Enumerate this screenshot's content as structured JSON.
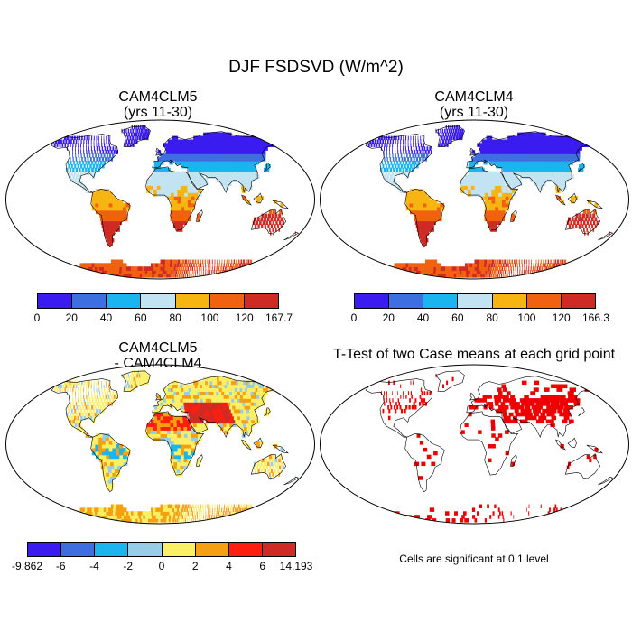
{
  "title": "DJF FSDSVD (W/m^2)",
  "panels": [
    {
      "title1": "CAM4CLM5",
      "title2": "(yrs 11-30)",
      "kind": "abs",
      "colorbar": {
        "labels": [
          "0",
          "20",
          "40",
          "60",
          "80",
          "100",
          "120",
          "167.7"
        ],
        "colors": [
          "#3b1cf0",
          "#3d6fe0",
          "#1ab4ef",
          "#c2e3f2",
          "#f6b511",
          "#f06110",
          "#cf2a24"
        ]
      }
    },
    {
      "title1": "CAM4CLM4",
      "title2": "(yrs 11-30)",
      "kind": "abs",
      "colorbar": {
        "labels": [
          "0",
          "20",
          "40",
          "60",
          "80",
          "100",
          "120",
          "166.3"
        ],
        "colors": [
          "#3b1cf0",
          "#3d6fe0",
          "#1ab4ef",
          "#c2e3f2",
          "#f6b511",
          "#f06110",
          "#cf2a24"
        ]
      }
    },
    {
      "title1": "CAM4CLM5",
      "title2": "- CAM4CLM4",
      "kind": "diff",
      "colorbar": {
        "labels": [
          "-9.862",
          "-6",
          "-4",
          "-2",
          "0",
          "2",
          "4",
          "6",
          "14.193"
        ],
        "colors": [
          "#3b1cf0",
          "#3d6fe0",
          "#1ab4ef",
          "#98cde8",
          "#fbef66",
          "#f4a010",
          "#fe1f10",
          "#cf2a24"
        ]
      }
    },
    {
      "title1": "T-Test of two Case means at each grid point",
      "title2": "",
      "kind": "ttest",
      "note": "Cells are significant at 0.1 level",
      "color": "#ee0000"
    }
  ]
}
